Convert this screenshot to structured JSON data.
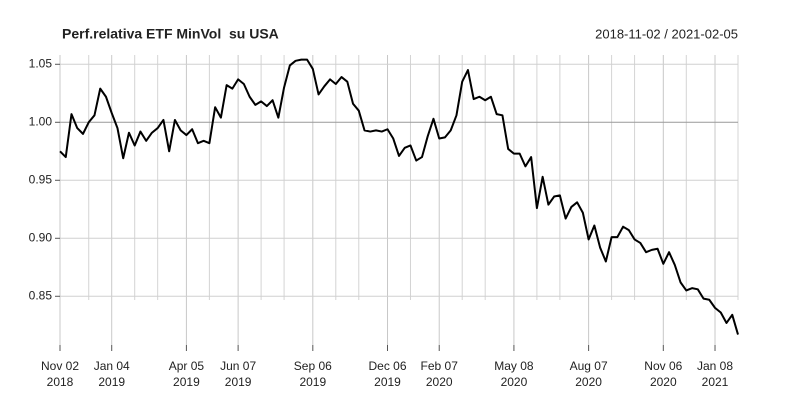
{
  "chart_data": {
    "type": "line",
    "title": "Perf.relativa ETF MinVol  su USA",
    "date_range": "2018-11-02 / 2021-02-05",
    "color": "#000000",
    "grid": true,
    "x": [
      "2018-11-02",
      "2018-11-09",
      "2018-11-16",
      "2018-11-23",
      "2018-11-30",
      "2018-12-07",
      "2018-12-14",
      "2018-12-21",
      "2018-12-28",
      "2019-01-04",
      "2019-01-11",
      "2019-01-18",
      "2019-01-25",
      "2019-02-01",
      "2019-02-08",
      "2019-02-15",
      "2019-02-22",
      "2019-03-01",
      "2019-03-08",
      "2019-03-15",
      "2019-03-22",
      "2019-03-29",
      "2019-04-05",
      "2019-04-12",
      "2019-04-19",
      "2019-04-26",
      "2019-05-03",
      "2019-05-10",
      "2019-05-17",
      "2019-05-24",
      "2019-05-31",
      "2019-06-07",
      "2019-06-14",
      "2019-06-21",
      "2019-06-28",
      "2019-07-05",
      "2019-07-12",
      "2019-07-19",
      "2019-07-26",
      "2019-08-02",
      "2019-08-09",
      "2019-08-16",
      "2019-08-23",
      "2019-08-30",
      "2019-09-06",
      "2019-09-13",
      "2019-09-20",
      "2019-09-27",
      "2019-10-04",
      "2019-10-11",
      "2019-10-18",
      "2019-10-25",
      "2019-11-01",
      "2019-11-08",
      "2019-11-15",
      "2019-11-22",
      "2019-11-29",
      "2019-12-06",
      "2019-12-13",
      "2019-12-20",
      "2019-12-27",
      "2020-01-03",
      "2020-01-10",
      "2020-01-17",
      "2020-01-24",
      "2020-01-31",
      "2020-02-07",
      "2020-02-14",
      "2020-02-21",
      "2020-02-28",
      "2020-03-06",
      "2020-03-13",
      "2020-03-20",
      "2020-03-27",
      "2020-04-03",
      "2020-04-10",
      "2020-04-17",
      "2020-04-24",
      "2020-05-01",
      "2020-05-08",
      "2020-05-15",
      "2020-05-22",
      "2020-05-29",
      "2020-06-05",
      "2020-06-12",
      "2020-06-19",
      "2020-06-26",
      "2020-07-03",
      "2020-07-10",
      "2020-07-17",
      "2020-07-24",
      "2020-07-31",
      "2020-08-07",
      "2020-08-14",
      "2020-08-21",
      "2020-08-28",
      "2020-09-04",
      "2020-09-11",
      "2020-09-18",
      "2020-09-25",
      "2020-10-02",
      "2020-10-09",
      "2020-10-16",
      "2020-10-23",
      "2020-10-30",
      "2020-11-06",
      "2020-11-13",
      "2020-11-20",
      "2020-11-27",
      "2020-12-04",
      "2020-12-11",
      "2020-12-18",
      "2020-12-25",
      "2021-01-01",
      "2021-01-08",
      "2021-01-15",
      "2021-01-22",
      "2021-01-29",
      "2021-02-05"
    ],
    "values": [
      0.975,
      0.97,
      1.007,
      0.995,
      0.99,
      1.0,
      1.006,
      1.029,
      1.022,
      1.008,
      0.995,
      0.969,
      0.991,
      0.98,
      0.992,
      0.984,
      0.991,
      0.995,
      1.002,
      0.975,
      1.002,
      0.993,
      0.989,
      0.994,
      0.982,
      0.984,
      0.982,
      1.013,
      1.004,
      1.032,
      1.029,
      1.037,
      1.033,
      1.022,
      1.015,
      1.018,
      1.014,
      1.019,
      1.004,
      1.03,
      1.049,
      1.053,
      1.054,
      1.054,
      1.046,
      1.024,
      1.031,
      1.037,
      1.033,
      1.039,
      1.035,
      1.016,
      1.01,
      0.993,
      0.992,
      0.993,
      0.992,
      0.994,
      0.986,
      0.971,
      0.978,
      0.98,
      0.967,
      0.97,
      0.988,
      1.003,
      0.986,
      0.987,
      0.993,
      1.006,
      1.035,
      1.045,
      1.02,
      1.022,
      1.019,
      1.022,
      1.007,
      1.006,
      0.977,
      0.973,
      0.973,
      0.962,
      0.97,
      0.926,
      0.953,
      0.929,
      0.936,
      0.937,
      0.917,
      0.927,
      0.931,
      0.922,
      0.899,
      0.911,
      0.892,
      0.88,
      0.901,
      0.901,
      0.91,
      0.907,
      0.899,
      0.896,
      0.888,
      0.89,
      0.891,
      0.878,
      0.888,
      0.877,
      0.862,
      0.855,
      0.857,
      0.856,
      0.848,
      0.847,
      0.84,
      0.836,
      0.827,
      0.834,
      0.817
    ],
    "xlim": [
      "2018-11-02",
      "2021-02-05"
    ],
    "ylim": [
      0.808,
      1.058
    ],
    "yticks": [
      0.85,
      {
        "value": 0.9,
        "label": "0.90"
      },
      0.95,
      {
        "value": 1.0,
        "label": "1.00"
      },
      1.05
    ],
    "xticks": [
      {
        "value": "2018-11-02",
        "label": [
          "Nov 02",
          "2018"
        ]
      },
      {
        "value": "2019-01-04",
        "label": [
          "Jan 04",
          "2019"
        ]
      },
      {
        "value": "2019-04-05",
        "label": [
          "Apr 05",
          "2019"
        ]
      },
      {
        "value": "2019-06-07",
        "label": [
          "Jun 07",
          "2019"
        ]
      },
      {
        "value": "2019-09-06",
        "label": [
          "Sep 06",
          "2019"
        ]
      },
      {
        "value": "2019-12-06",
        "label": [
          "Dec 06",
          "2019"
        ]
      },
      {
        "value": "2020-02-07",
        "label": [
          "Feb 07",
          "2020"
        ]
      },
      {
        "value": "2020-05-08",
        "label": [
          "May 08",
          "2020"
        ]
      },
      {
        "value": "2020-08-07",
        "label": [
          "Aug 07",
          "2020"
        ]
      },
      {
        "value": "2020-11-06",
        "label": [
          "Nov 06",
          "2020"
        ]
      },
      {
        "value": "2021-01-08",
        "label": [
          "Jan 08",
          "2021"
        ]
      }
    ],
    "xminorticks": [
      "2018-12-07",
      "2019-02-01",
      "2019-03-01",
      "2019-05-03",
      "2019-07-05",
      "2019-08-02",
      "2019-10-04",
      "2019-11-01",
      "2020-01-03",
      "2020-03-06",
      "2020-04-03",
      "2020-06-05",
      "2020-07-03",
      "2020-09-04",
      "2020-10-02",
      "2020-12-04",
      "2021-02-05"
    ]
  }
}
